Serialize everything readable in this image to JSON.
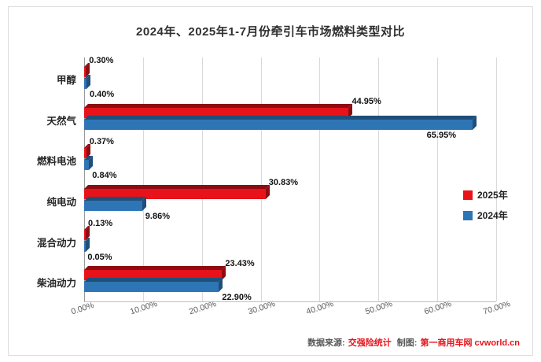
{
  "chart_data": {
    "type": "bar",
    "orientation": "horizontal",
    "title": "2024年、2025年1-7月份牵引车市场燃料类型对比",
    "categories": [
      "甲醇",
      "天然气",
      "燃料电池",
      "纯电动",
      "混合动力",
      "柴油动力"
    ],
    "series": [
      {
        "name": "2025年",
        "color": "#e8121a",
        "dark": "#8e0b10",
        "values": [
          0.3,
          44.95,
          0.37,
          30.83,
          0.13,
          23.43
        ],
        "labels": [
          "0.30%",
          "44.95%",
          "0.37%",
          "30.83%",
          "0.13%",
          "23.43%"
        ]
      },
      {
        "name": "2024年",
        "color": "#2e75b6",
        "dark": "#1f4e79",
        "values": [
          0.4,
          65.95,
          0.84,
          9.86,
          0.05,
          22.9
        ],
        "labels": [
          "0.40%",
          "65.95%",
          "0.84%",
          "9.86%",
          "0.05%",
          "22.90%"
        ]
      }
    ],
    "xlim": [
      0,
      70
    ],
    "x_ticks": [
      "0.00%",
      "10.00%",
      "20.00%",
      "30.00%",
      "40.00%",
      "50.00%",
      "60.00%",
      "70.00%"
    ],
    "grid": true,
    "legend_position": "right"
  },
  "footer": {
    "source_label": "数据来源:",
    "source_value": "交强险统计",
    "maker_label": "制图:",
    "maker_value": "第一商用车网 cvworld.cn"
  }
}
